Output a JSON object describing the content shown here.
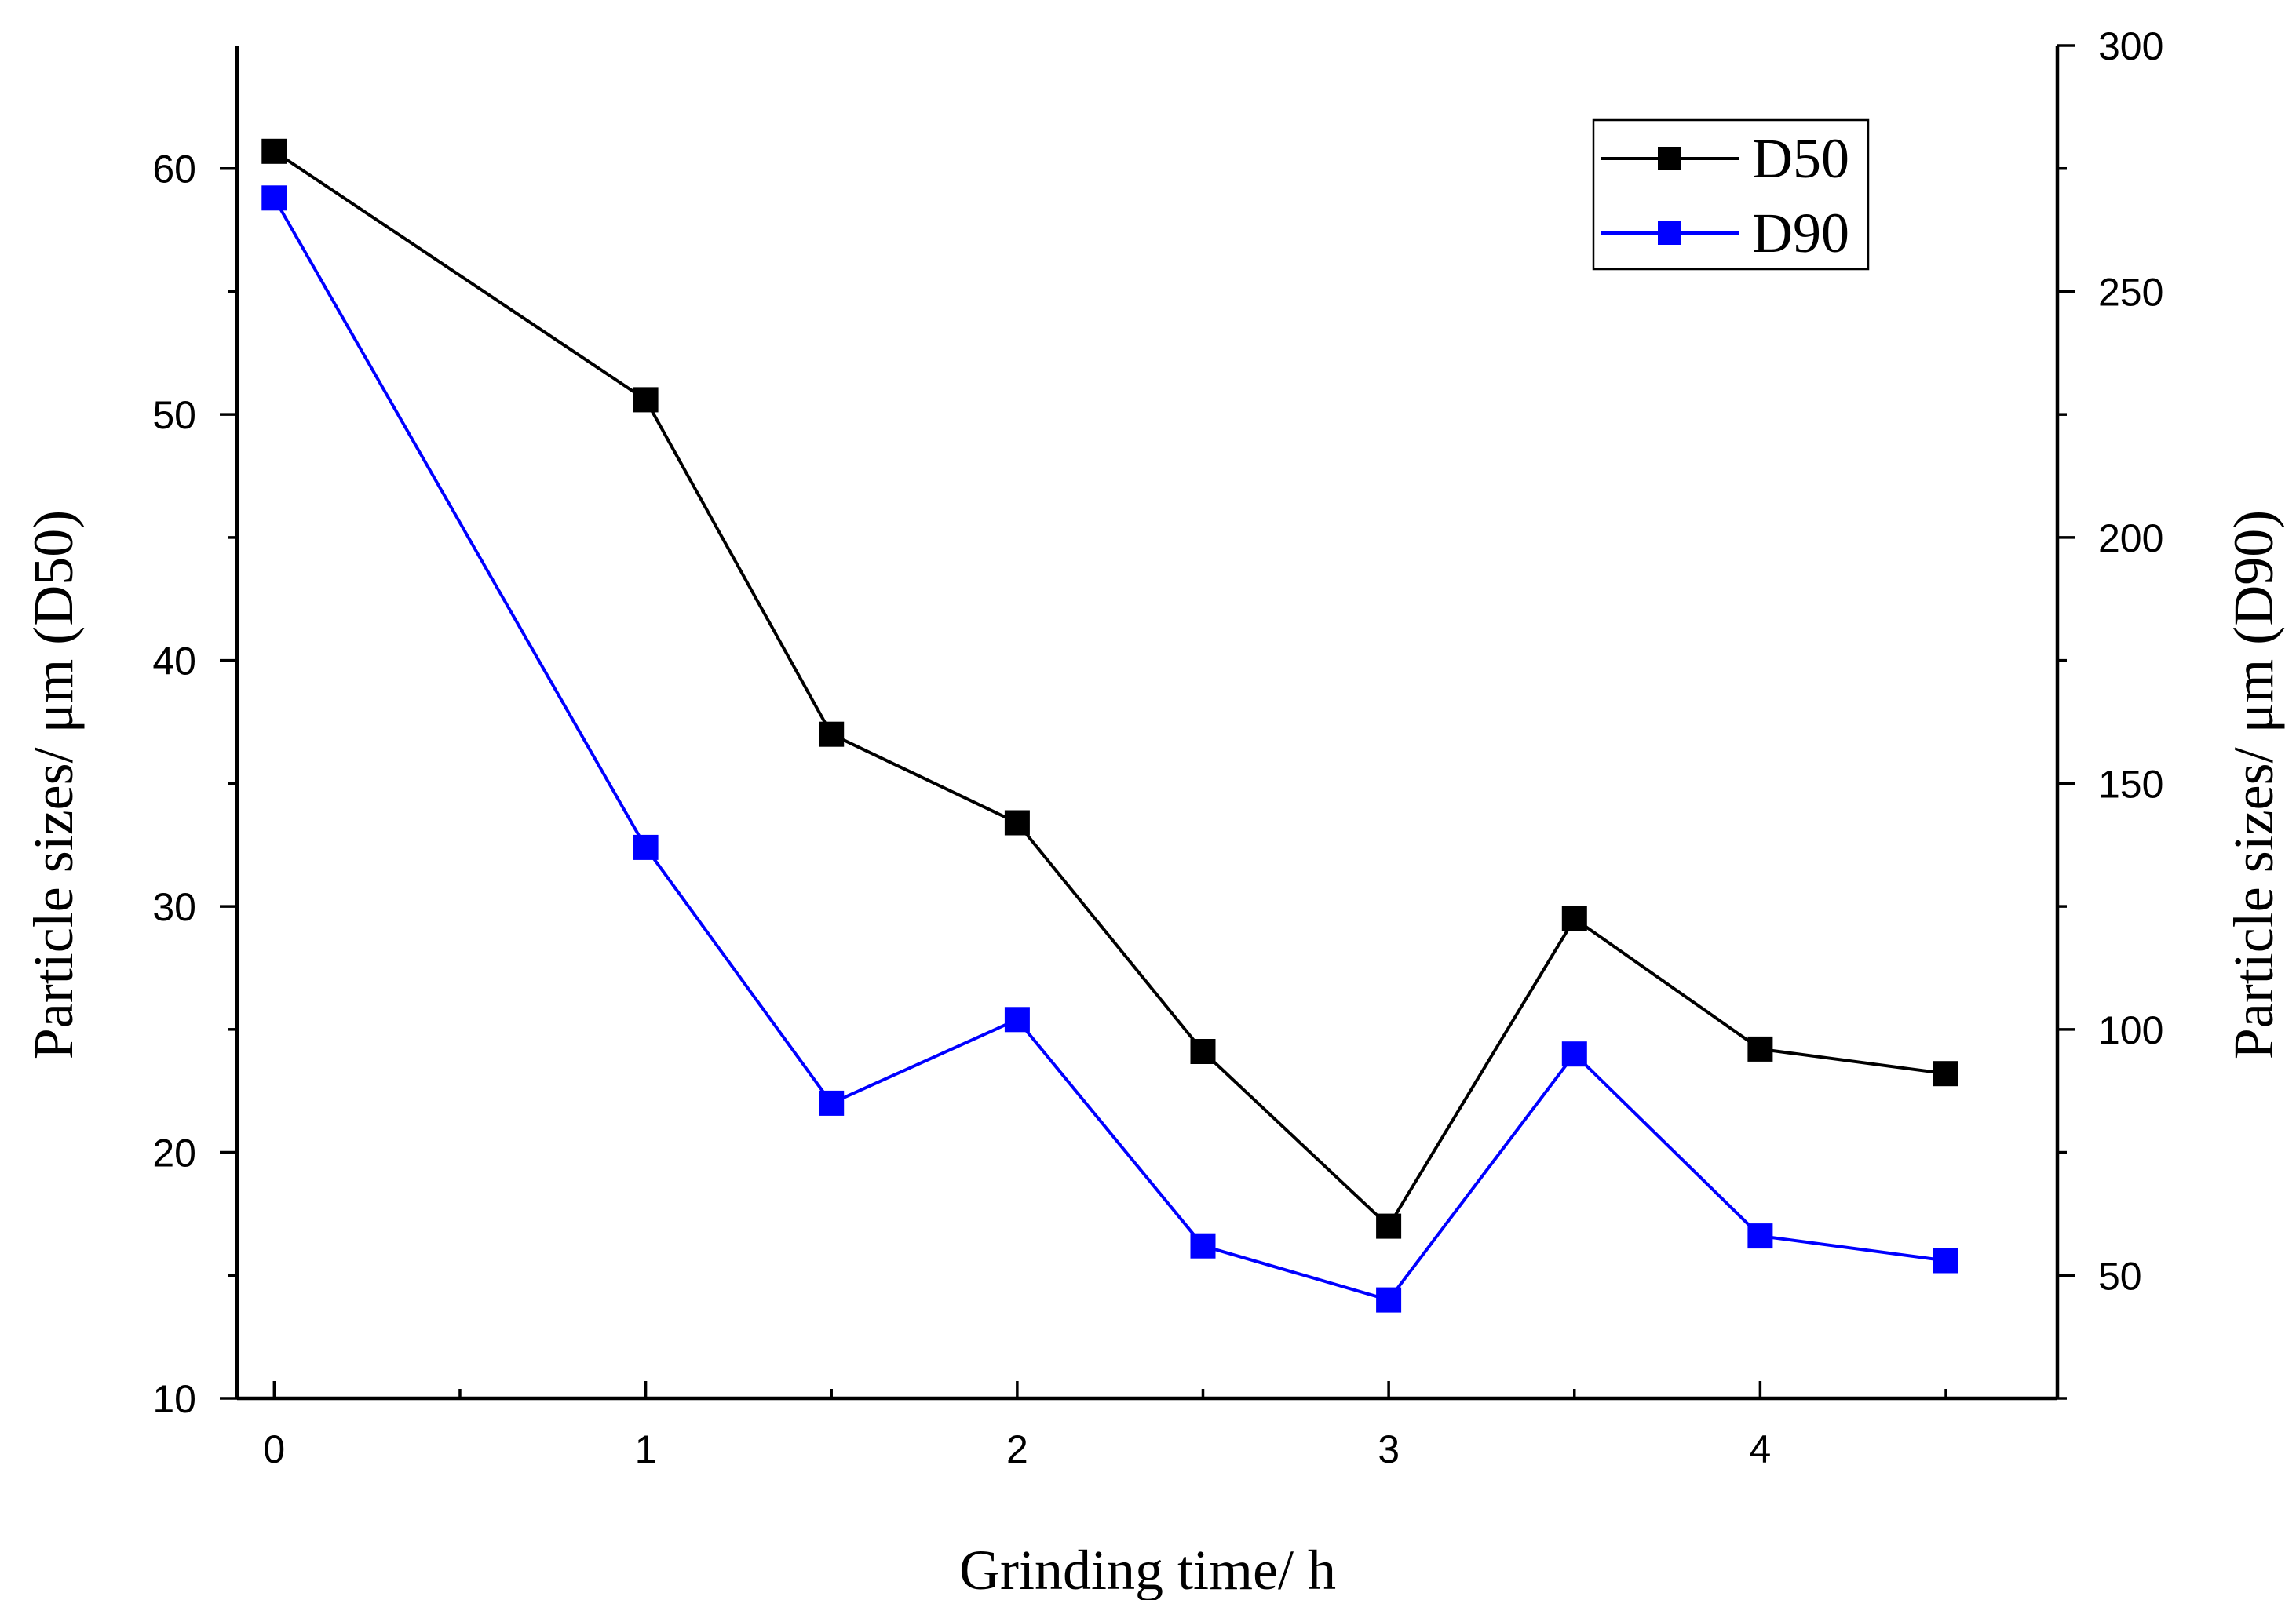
{
  "chart_data": {
    "type": "line",
    "title": "",
    "xlabel": "Grinding time/ h",
    "ylabel_left": "Particle sizes/ μm (D50)",
    "ylabel_right": "Particle sizes/ μm (D90)",
    "x": [
      0,
      1,
      1.5,
      2,
      2.5,
      3,
      3.5,
      4,
      4.5
    ],
    "xlim": [
      -0.1,
      4.8
    ],
    "ylim_left": [
      10,
      65
    ],
    "ylim_right": [
      25,
      300
    ],
    "x_ticks_major": [
      0,
      1,
      2,
      3,
      4
    ],
    "x_ticks_minor": [
      0.5,
      1.5,
      2.5,
      3.5,
      4.5
    ],
    "y_left_ticks_major": [
      10,
      20,
      30,
      40,
      50,
      60
    ],
    "y_left_ticks_minor": [
      15,
      25,
      35,
      45,
      55
    ],
    "y_right_ticks_major": [
      50,
      100,
      150,
      200,
      250,
      300
    ],
    "y_right_ticks_minor": [
      25,
      75,
      125,
      175,
      225,
      275
    ],
    "grid": false,
    "legend_position": "top-right",
    "series": [
      {
        "name": "D50",
        "axis": "left",
        "color": "#000000",
        "marker": "square",
        "values": [
          60.7,
          50.6,
          37.0,
          33.4,
          24.1,
          17.0,
          29.5,
          24.2,
          23.2
        ]
      },
      {
        "name": "D90",
        "axis": "right",
        "color": "#0000ff",
        "marker": "square",
        "values": [
          269,
          137,
          85,
          102,
          56,
          45,
          95,
          58,
          53
        ]
      }
    ]
  }
}
